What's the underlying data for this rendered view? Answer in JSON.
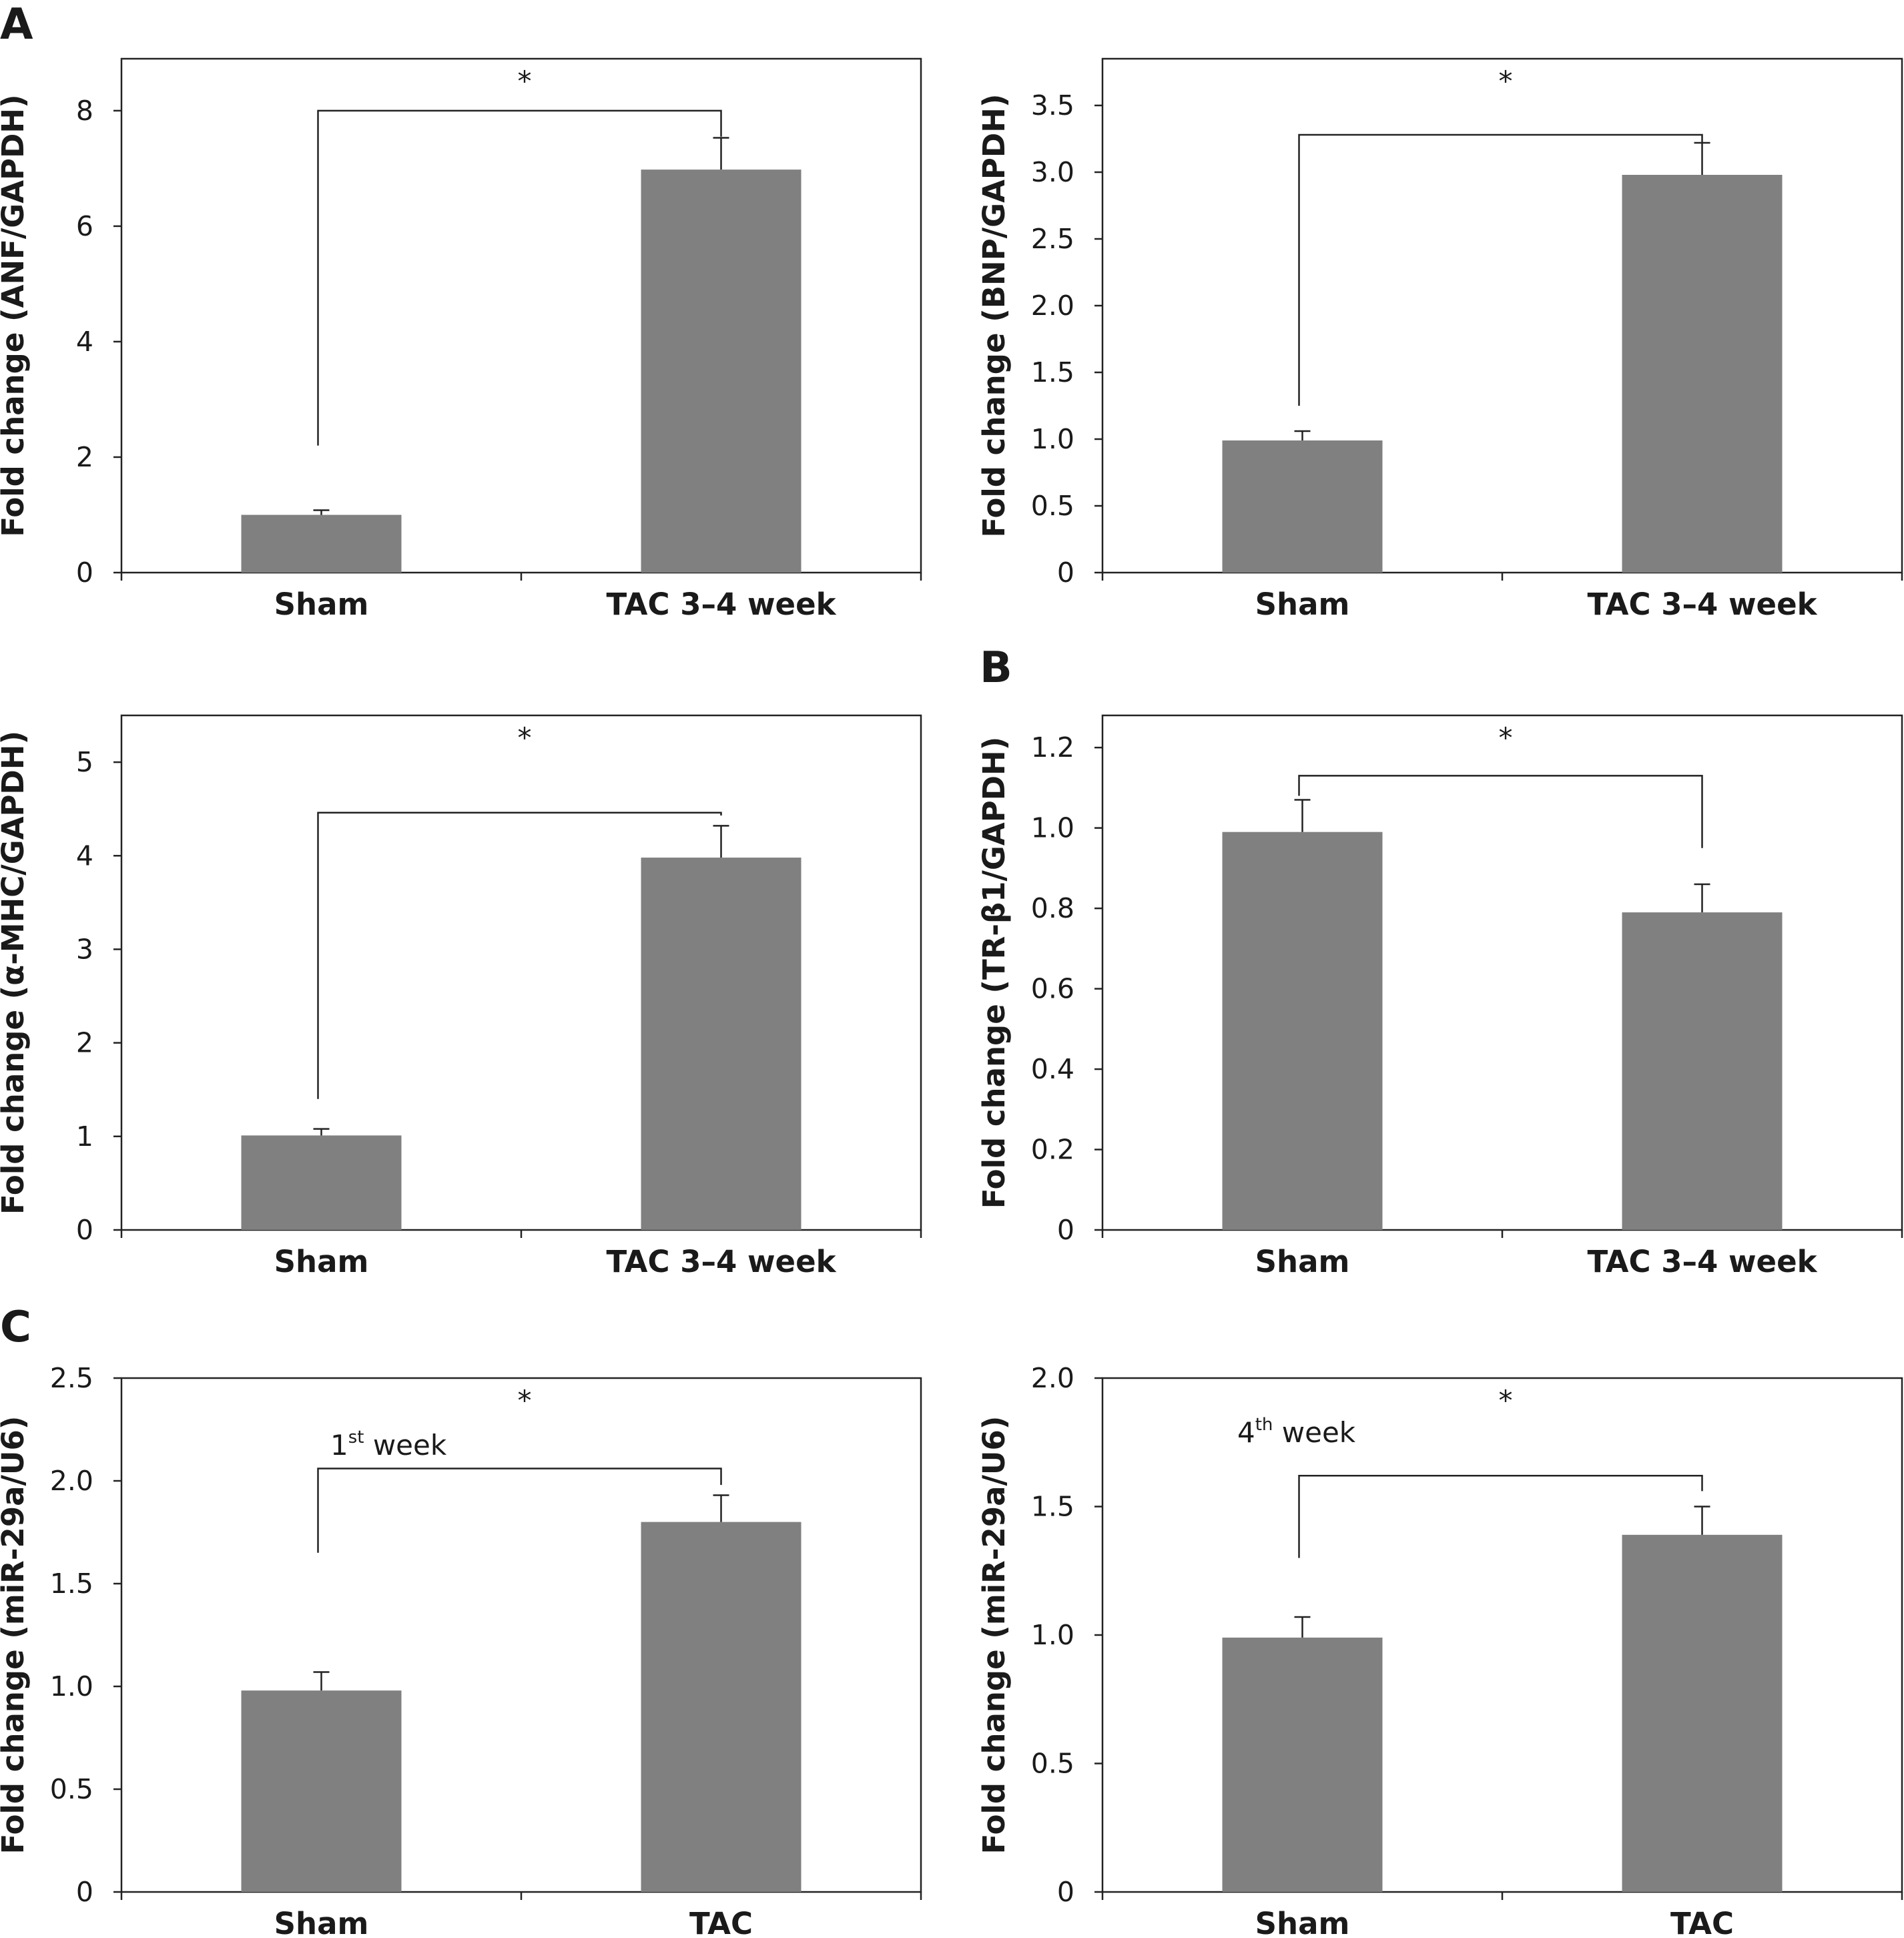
{
  "panel_letters": [
    "A",
    "B",
    "C"
  ],
  "chart_data": [
    {
      "type": "bar",
      "categories": [
        "Sham",
        "TAC 3–4 week"
      ],
      "values": [
        1.0,
        6.98
      ],
      "errors": [
        0.08,
        0.55
      ],
      "ylabel": "Fold change (ANF/GAPDH)",
      "yticks": [
        "0",
        "2",
        "4",
        "6",
        "8"
      ],
      "ylim": [
        0,
        8.9
      ],
      "significance": "*",
      "bracket_from_y": 2.2,
      "bracket_top_y": 8.0,
      "bracket_to_y": 7.55,
      "annotation": "",
      "bar_color": "#808080",
      "grid": false
    },
    {
      "type": "bar",
      "categories": [
        "Sham",
        "TAC 3–4 week"
      ],
      "values": [
        0.99,
        2.98
      ],
      "errors": [
        0.07,
        0.24
      ],
      "ylabel": "Fold change (BNP/GAPDH)",
      "yticks": [
        "0",
        "0.5",
        "1.0",
        "1.5",
        "2.0",
        "2.5",
        "3.0",
        "3.5"
      ],
      "ylim": [
        0,
        3.85
      ],
      "significance": "*",
      "bracket_from_y": 1.25,
      "bracket_top_y": 3.28,
      "bracket_to_y": 3.22,
      "annotation": "",
      "bar_color": "#808080",
      "grid": false
    },
    {
      "type": "bar",
      "categories": [
        "Sham",
        "TAC 3–4 week"
      ],
      "values": [
        1.01,
        3.98
      ],
      "errors": [
        0.07,
        0.34
      ],
      "ylabel": "Fold change (α-MHC/GAPDH)",
      "yticks": [
        "0",
        "1",
        "2",
        "3",
        "4",
        "5"
      ],
      "ylim": [
        0,
        5.5
      ],
      "significance": "*",
      "bracket_from_y": 1.4,
      "bracket_top_y": 4.46,
      "bracket_to_y": 4.43,
      "annotation": "",
      "bar_color": "#808080",
      "grid": false
    },
    {
      "type": "bar",
      "categories": [
        "Sham",
        "TAC 3–4 week"
      ],
      "values": [
        0.99,
        0.79
      ],
      "errors": [
        0.08,
        0.07
      ],
      "ylabel": "Fold change (TR-β1/GAPDH)",
      "yticks": [
        "0",
        "0.2",
        "0.4",
        "0.6",
        "0.8",
        "1.0",
        "1.2"
      ],
      "ylim": [
        0,
        1.28
      ],
      "significance": "*",
      "bracket_from_y": 1.08,
      "bracket_top_y": 1.13,
      "bracket_to_y": 0.95,
      "annotation": "",
      "bar_color": "#808080",
      "grid": false
    },
    {
      "type": "bar",
      "categories": [
        "Sham",
        "TAC"
      ],
      "values": [
        0.98,
        1.8
      ],
      "errors": [
        0.09,
        0.13
      ],
      "ylabel": "Fold change (miR-29a/U6)",
      "yticks": [
        "0",
        "0.5",
        "1.0",
        "1.5",
        "2.0",
        "2.5"
      ],
      "ylim": [
        0,
        2.5
      ],
      "significance": "*",
      "bracket_from_y": 1.65,
      "bracket_top_y": 2.06,
      "bracket_to_y": 1.98,
      "annotation": "1st week",
      "annotation_base": "1",
      "annotation_sup": "st",
      "annotation_rest": " week",
      "bar_color": "#808080",
      "grid": false
    },
    {
      "type": "bar",
      "categories": [
        "Sham",
        "TAC"
      ],
      "values": [
        0.99,
        1.39
      ],
      "errors": [
        0.08,
        0.11
      ],
      "ylabel": "Fold change (miR-29a/U6)",
      "yticks": [
        "0",
        "0.5",
        "1.0",
        "1.5",
        "2.0"
      ],
      "ylim": [
        0,
        2.0
      ],
      "significance": "*",
      "bracket_from_y": 1.3,
      "bracket_top_y": 1.62,
      "bracket_to_y": 1.56,
      "annotation": "4th week",
      "annotation_base": "4",
      "annotation_sup": "th",
      "annotation_rest": " week",
      "bar_color": "#808080",
      "grid": false
    }
  ]
}
